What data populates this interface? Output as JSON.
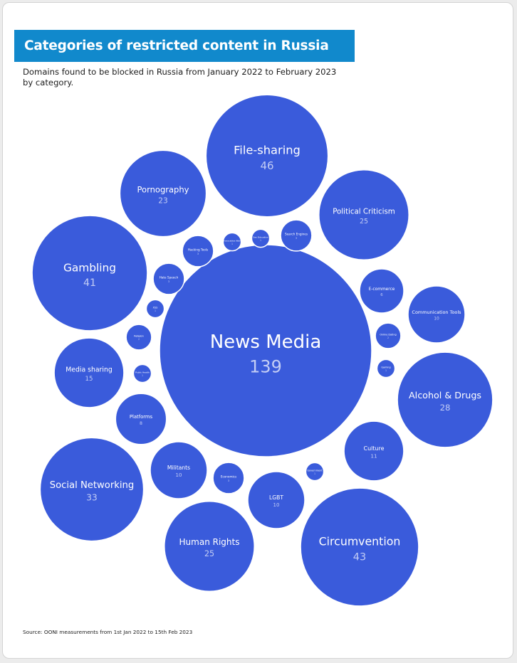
{
  "header": {
    "title": "Categories of restricted content in Russia",
    "subtitle": "Domains found to be blocked in Russia from January 2022 to February 2023 by category."
  },
  "footer": {
    "source": "Source: OONI measurements from 1st Jan 2022 to 15th Feb 2023"
  },
  "colors": {
    "banner": "#1189cc",
    "bubble": "#3a5bdb",
    "bubble_stroke": "#ffffff",
    "label": "#ffffff",
    "value": "#c3cdf5"
  },
  "chart_data": {
    "type": "bubble",
    "title": "Categories of restricted content in Russia",
    "series": [
      {
        "label": "News Media",
        "value": 139
      },
      {
        "label": "File-sharing",
        "value": 46
      },
      {
        "label": "Circumvention",
        "value": 43
      },
      {
        "label": "Gambling",
        "value": 41
      },
      {
        "label": "Social Networking",
        "value": 33
      },
      {
        "label": "Alcohol & Drugs",
        "value": 28
      },
      {
        "label": "Political Criticism",
        "value": 25
      },
      {
        "label": "Human Rights",
        "value": 25
      },
      {
        "label": "Pornography",
        "value": 23
      },
      {
        "label": "Media sharing",
        "value": 15
      },
      {
        "label": "Culture",
        "value": 11
      },
      {
        "label": "Communication Tools",
        "value": 10
      },
      {
        "label": "Militants",
        "value": 10
      },
      {
        "label": "LGBT",
        "value": 10
      },
      {
        "label": "Platforms",
        "value": 8
      },
      {
        "label": "E-commerce",
        "value": 6
      },
      {
        "label": "Hacking Tools",
        "value": 3
      },
      {
        "label": "Search Engines",
        "value": 3
      },
      {
        "label": "Hate Speech",
        "value": 3
      },
      {
        "label": "Economics",
        "value": 3
      },
      {
        "label": "Religion",
        "value": 2
      },
      {
        "label": "Online Dating",
        "value": 2
      },
      {
        "label": "Provocative Attire",
        "value": 1
      },
      {
        "label": "Sex Education",
        "value": 1
      },
      {
        "label": "XSS",
        "value": 1
      },
      {
        "label": "Public Health",
        "value": 1
      },
      {
        "label": "Gaming",
        "value": 1
      },
      {
        "label": "Government",
        "value": 1
      }
    ]
  }
}
